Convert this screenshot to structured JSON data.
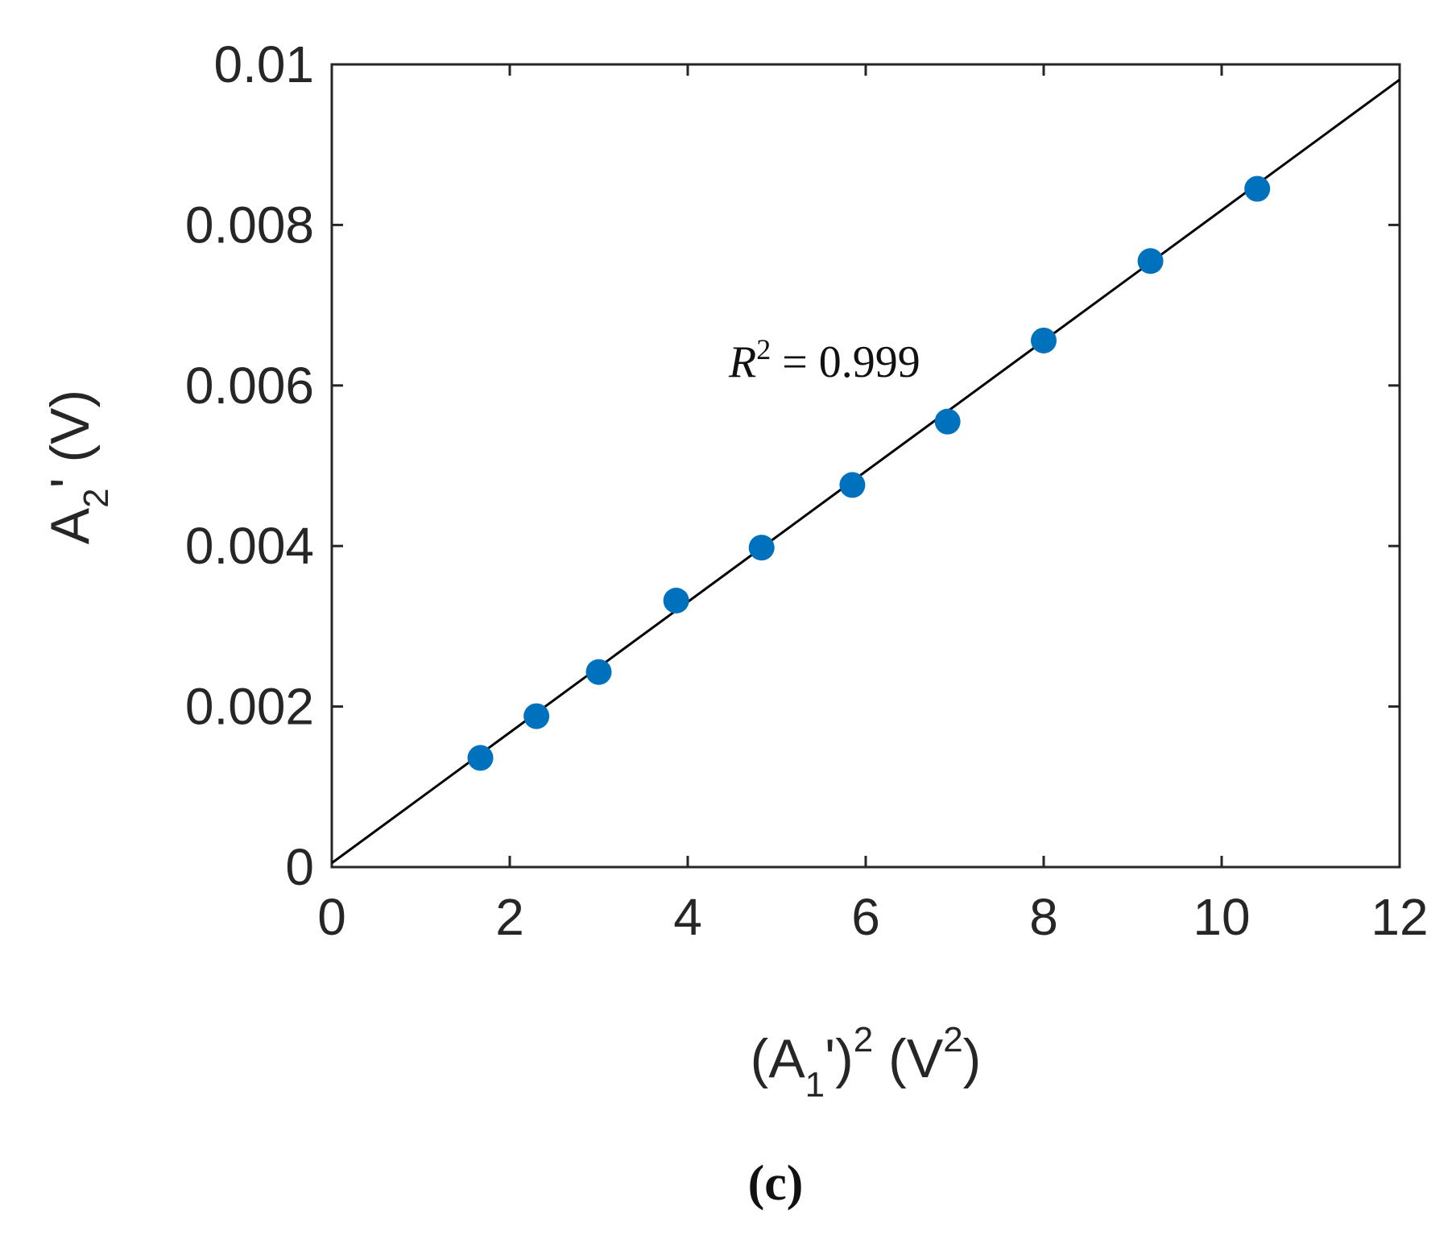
{
  "chart_data": {
    "type": "scatter",
    "x_ticks": [
      0,
      2,
      4,
      6,
      8,
      10,
      12
    ],
    "x_tick_labels": [
      "0",
      "2",
      "4",
      "6",
      "8",
      "10",
      "12"
    ],
    "y_ticks": [
      0,
      0.002,
      0.004,
      0.006,
      0.008,
      0.01
    ],
    "y_tick_labels": [
      "0",
      "0.002",
      "0.004",
      "0.006",
      "0.008",
      "0.01"
    ],
    "xlim": [
      0,
      12
    ],
    "ylim": [
      0,
      0.01
    ],
    "xlabel": {
      "open": "(A",
      "sub1": "1",
      "mid": "')",
      "sup1": "2",
      "tail": " (V",
      "sup2": "2",
      "close": ")"
    },
    "ylabel": {
      "main": "A",
      "sub": "2",
      "tail": "' (V)"
    },
    "grid": false,
    "series": [
      {
        "marker_color": "#0072BD",
        "x": [
          1.67,
          2.3,
          3.0,
          3.87,
          4.83,
          5.85,
          6.92,
          8.0,
          9.2,
          10.4
        ],
        "y": [
          0.00136,
          0.00188,
          0.00243,
          0.00332,
          0.00398,
          0.00476,
          0.00555,
          0.00656,
          0.00755,
          0.00845
        ]
      }
    ],
    "fit_line": {
      "x": [
        0,
        12
      ],
      "y": [
        5e-05,
        0.00981
      ],
      "color": "#000000"
    },
    "annotation": {
      "symbol": "R",
      "sup": "2",
      "text": " = 0.999"
    },
    "panel_label": "(c)"
  }
}
